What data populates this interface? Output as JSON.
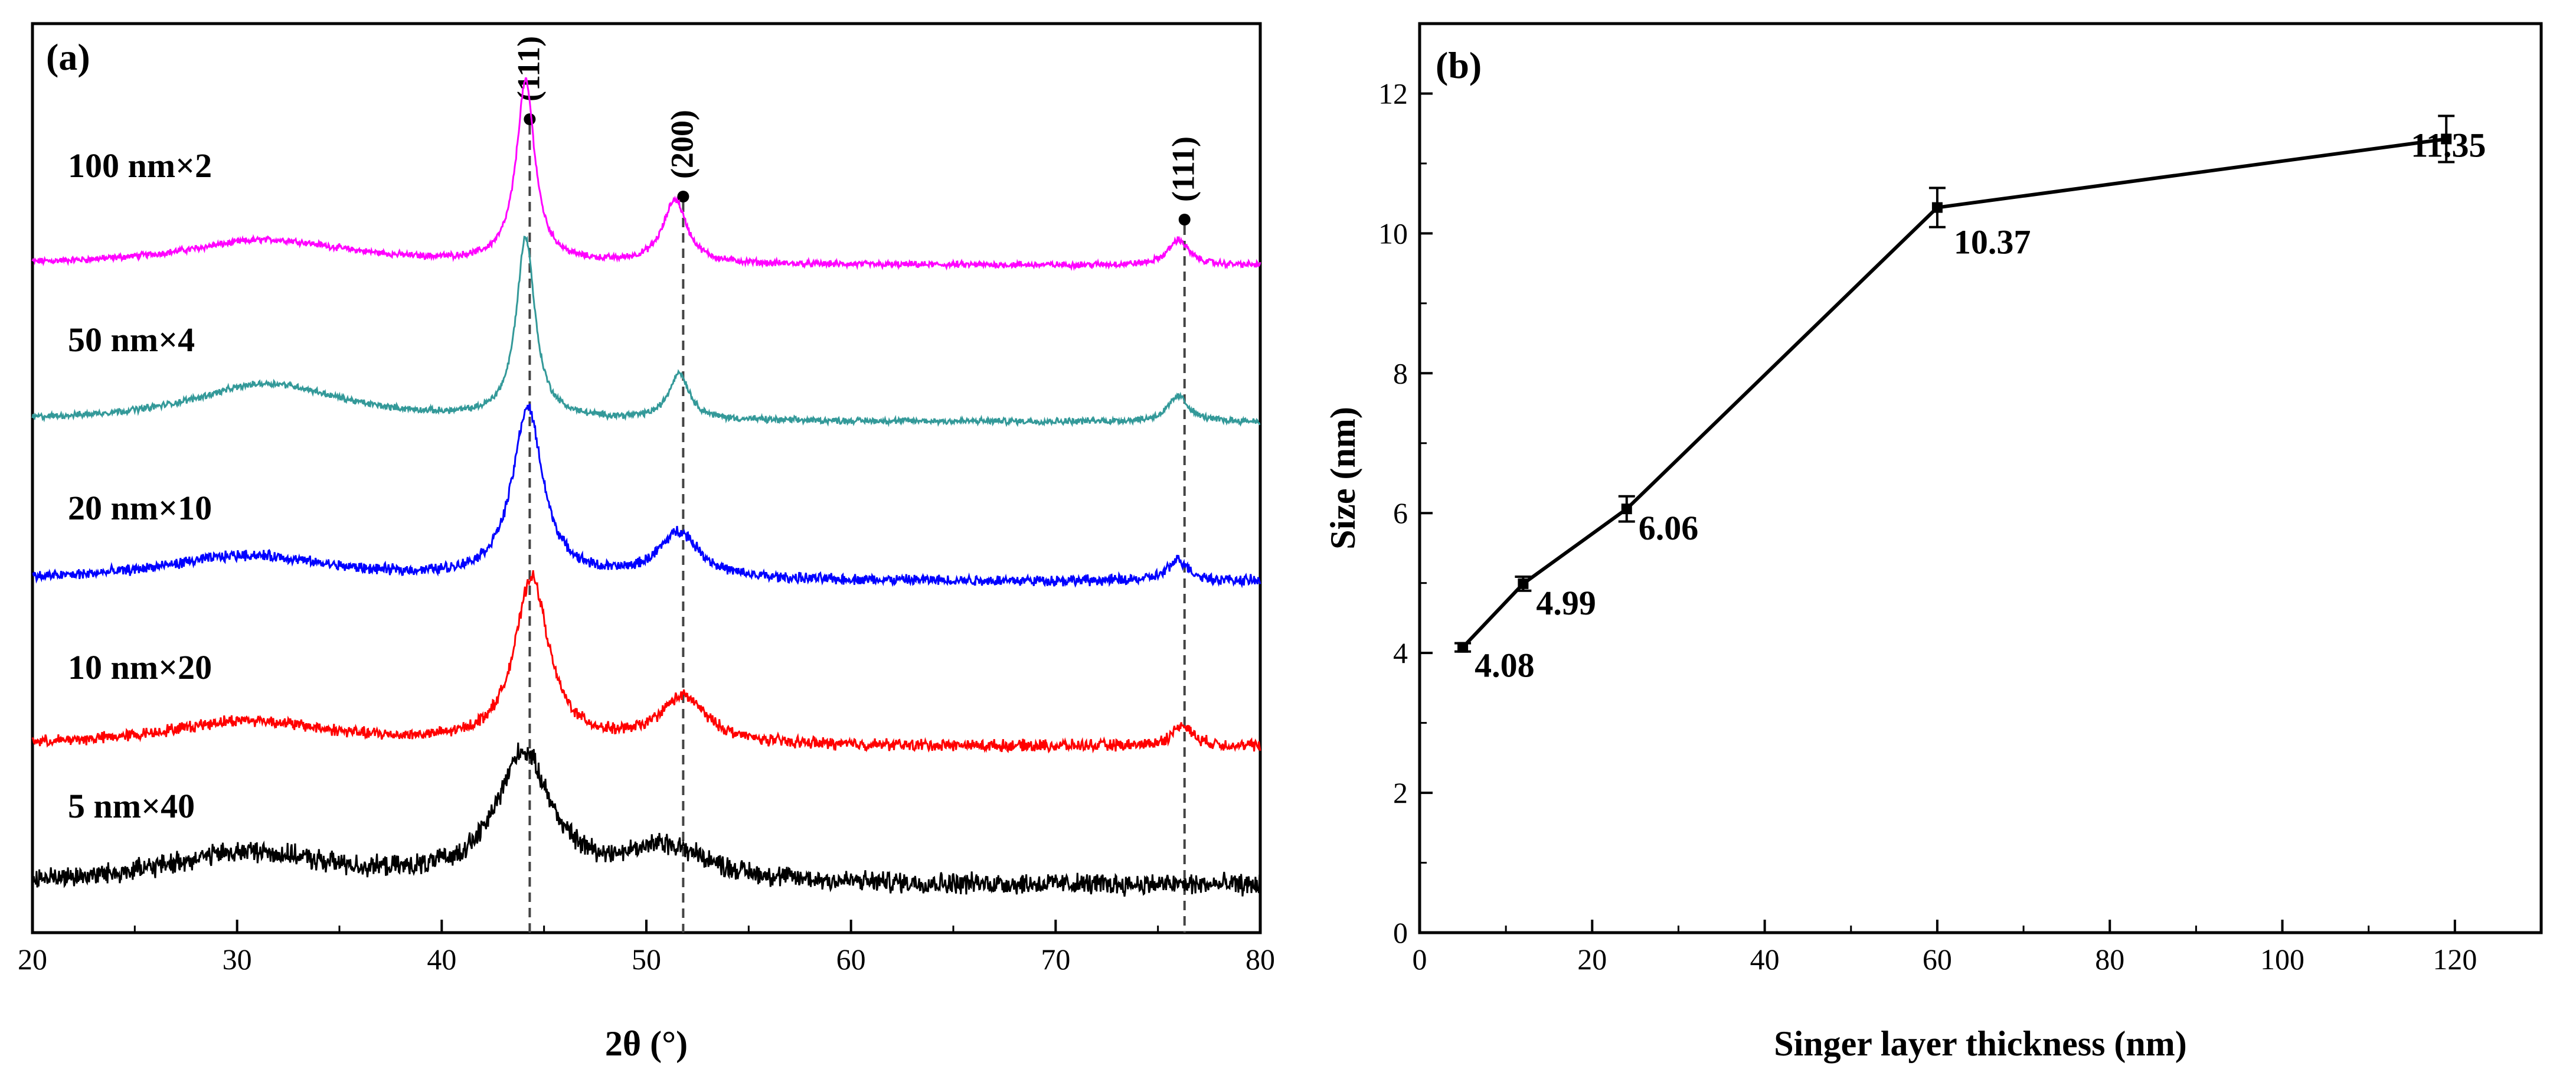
{
  "chart_data": [
    {
      "type": "line",
      "panel_label": "(a)",
      "xlabel": "2θ (°)",
      "ylabel": "",
      "xlim": [
        20,
        80
      ],
      "xticks": [
        "20",
        "30",
        "40",
        "50",
        "60",
        "70",
        "80"
      ],
      "yticks_shown": false,
      "grid": false,
      "peak_markers": [
        {
          "label": "(111)",
          "two_theta": 44.3
        },
        {
          "label": "(200)",
          "two_theta": 51.8
        },
        {
          "label": "(111)",
          "two_theta": 76.3
        }
      ],
      "series": [
        {
          "name": "100 nm×2",
          "color": "#ff00ff",
          "offset": 4,
          "peaks": [
            {
              "center": 31.5,
              "width": 5.0,
              "height": 0.12
            },
            {
              "center": 44.1,
              "width": 0.55,
              "height": 0.85
            },
            {
              "center": 51.4,
              "width": 0.7,
              "height": 0.3
            },
            {
              "center": 76.0,
              "width": 0.6,
              "height": 0.12
            }
          ],
          "noise": 0.012
        },
        {
          "name": "50 nm×4",
          "color": "#339999",
          "offset": 3,
          "peaks": [
            {
              "center": 31.5,
              "width": 4.5,
              "height": 0.18
            },
            {
              "center": 44.1,
              "width": 0.55,
              "height": 0.85
            },
            {
              "center": 51.6,
              "width": 0.6,
              "height": 0.22
            },
            {
              "center": 76.0,
              "width": 0.6,
              "height": 0.12
            }
          ],
          "noise": 0.012
        },
        {
          "name": "20 nm×10",
          "color": "#0000ff",
          "offset": 2,
          "peaks": [
            {
              "center": 30.5,
              "width": 5.0,
              "height": 0.12
            },
            {
              "center": 44.2,
              "width": 0.9,
              "height": 0.8
            },
            {
              "center": 51.6,
              "width": 1.2,
              "height": 0.22
            },
            {
              "center": 76.0,
              "width": 0.6,
              "height": 0.1
            }
          ],
          "noise": 0.02
        },
        {
          "name": "10 nm×20",
          "color": "#ff0000",
          "offset": 1,
          "peaks": [
            {
              "center": 30.5,
              "width": 5.0,
              "height": 0.12
            },
            {
              "center": 44.4,
              "width": 1.0,
              "height": 0.78
            },
            {
              "center": 51.8,
              "width": 1.4,
              "height": 0.22
            },
            {
              "center": 76.2,
              "width": 0.6,
              "height": 0.1
            }
          ],
          "noise": 0.022
        },
        {
          "name": "5 nm×40",
          "color": "#000000",
          "offset": 0,
          "peaks": [
            {
              "center": 30.5,
              "width": 5.0,
              "height": 0.15
            },
            {
              "center": 44.0,
              "width": 1.6,
              "height": 0.6
            },
            {
              "center": 51.0,
              "width": 2.5,
              "height": 0.16
            }
          ],
          "noise": 0.04
        }
      ]
    },
    {
      "type": "line",
      "panel_label": "(b)",
      "xlabel": "Singer layer thickness (nm)",
      "ylabel": "Size (nm)",
      "xlim": [
        0,
        130
      ],
      "ylim": [
        0,
        13
      ],
      "xticks": [
        "0",
        "20",
        "40",
        "60",
        "80",
        "100",
        "120"
      ],
      "yticks": [
        "0",
        "2",
        "4",
        "6",
        "8",
        "10",
        "12"
      ],
      "grid": false,
      "series": [
        {
          "name": "Size",
          "color": "#000000",
          "points": [
            {
              "x": 5,
              "y": 4.08,
              "err": 0.06,
              "label": "4.08"
            },
            {
              "x": 12,
              "y": 4.99,
              "err": 0.1,
              "label": "4.99"
            },
            {
              "x": 24,
              "y": 6.06,
              "err": 0.18,
              "label": "6.06"
            },
            {
              "x": 60,
              "y": 10.37,
              "err": 0.28,
              "label": "10.37"
            },
            {
              "x": 119,
              "y": 11.35,
              "err": 0.33,
              "label": "11.35"
            }
          ]
        }
      ]
    }
  ]
}
